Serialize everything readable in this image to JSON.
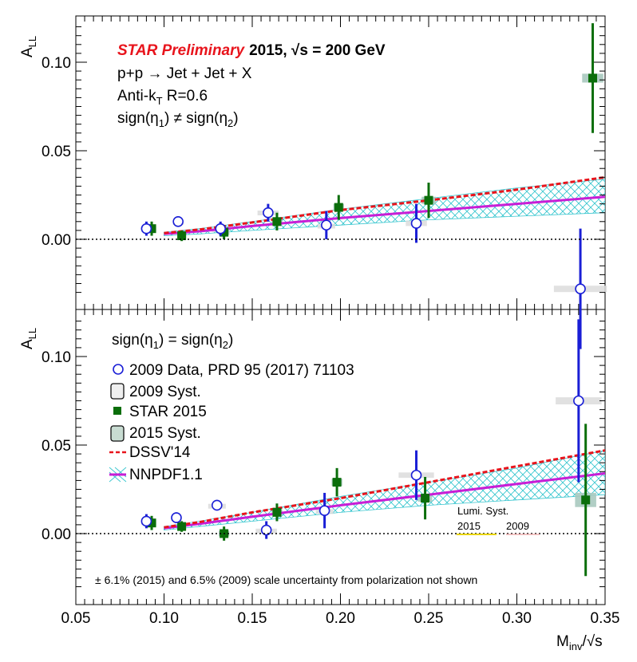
{
  "figure": {
    "y_axis_label_main": "A",
    "y_axis_label_sub": "LL",
    "x_axis_label_main": "M",
    "x_axis_label_sub": "inv",
    "x_axis_label_tail": "/√s",
    "x_tick_labels": [
      "0.05",
      "0.10",
      "0.15",
      "0.20",
      "0.25",
      "0.30",
      "0.35"
    ],
    "y_tick_labels": [
      "0.00",
      "0.05",
      "0.10"
    ]
  },
  "top_panel": {
    "prelim": "STAR Preliminary",
    "energy": "2015, √s = 200 GeV",
    "process": "p+p → Jet + Jet + X",
    "algo_main": "Anti-k",
    "algo_sub": "T",
    "algo_tail": " R=0.6",
    "topology_a": "sign(η",
    "topology_sub1": "1",
    "topology_b": ") ≠ sign(η",
    "topology_sub2": "2",
    "topology_c": ")"
  },
  "bottom_panel": {
    "topology_a": "sign(η",
    "topology_sub1": "1",
    "topology_b": ") = sign(η",
    "topology_sub2": "2",
    "topology_c": ")",
    "legend": {
      "data2009": "2009 Data, PRD 95 (2017) 71103",
      "syst2009": "2009 Syst.",
      "star2015": "STAR 2015",
      "syst2015": "2015 Syst.",
      "dssv": "DSSV'14",
      "nnpdf": "NNPDF1.1"
    },
    "lumi_title": "Lumi. Syst.",
    "lumi_2015": "2015",
    "lumi_2009": "2009",
    "note": "± 6.1% (2015) and 6.5% (2009) scale uncertainty from polarization not shown"
  },
  "colors": {
    "data2009": "#1a1fd6",
    "star2015": "#0b6e0b",
    "syst2009": "#dcdcdc",
    "syst2015": "#a9c9bf",
    "dssv": "#e8141c",
    "nnpdf": "#c81ed6",
    "nnpdf_band": "#39c6cf",
    "zero_line": "#000000"
  },
  "chart_data": [
    {
      "panel": "top",
      "type": "scatter",
      "xlim": [
        0.05,
        0.35
      ],
      "ylim": [
        -0.032,
        0.123
      ],
      "xlabel": "Minv/√s",
      "ylabel": "ALL",
      "grid": false,
      "series": [
        {
          "name": "2009 Data, PRD 95 (2017) 71103",
          "x": [
            0.09,
            0.108,
            0.132,
            0.159,
            0.192,
            0.243,
            0.336
          ],
          "y": [
            0.006,
            0.01,
            0.006,
            0.015,
            0.008,
            0.009,
            -0.028
          ],
          "yerr": [
            0.004,
            0.003,
            0.004,
            0.005,
            0.008,
            0.011,
            0.034
          ],
          "syst": [
            0.0008,
            0.0008,
            0.0008,
            0.0012,
            0.0008,
            0.0015,
            0.0018
          ],
          "syst_halfwidth": [
            0.003,
            0.003,
            0.005,
            0.006,
            0.005,
            0.006,
            0.015
          ]
        },
        {
          "name": "STAR 2015",
          "x": [
            0.093,
            0.11,
            0.134,
            0.164,
            0.199,
            0.25,
            0.343
          ],
          "y": [
            0.006,
            0.002,
            0.004,
            0.01,
            0.018,
            0.022,
            0.091
          ],
          "yerr": [
            0.004,
            0.003,
            0.004,
            0.005,
            0.007,
            0.01,
            0.031
          ],
          "syst": [
            0.0015,
            0.0015,
            0.0015,
            0.0018,
            0.002,
            0.002,
            0.0025
          ],
          "syst_halfwidth": [
            0.0025,
            0.0025,
            0.003,
            0.003,
            0.003,
            0.004,
            0.006
          ]
        },
        {
          "name": "DSSV'14",
          "x": [
            0.1,
            0.12,
            0.15,
            0.2,
            0.25,
            0.3,
            0.35
          ],
          "y": [
            0.0035,
            0.0055,
            0.0095,
            0.0165,
            0.022,
            0.028,
            0.035
          ]
        },
        {
          "name": "NNPDF1.1",
          "x": [
            0.1,
            0.12,
            0.15,
            0.2,
            0.25,
            0.3,
            0.35
          ],
          "y": [
            0.003,
            0.0045,
            0.0075,
            0.012,
            0.016,
            0.02,
            0.024
          ],
          "band_low": [
            0.002,
            0.003,
            0.005,
            0.008,
            0.011,
            0.013,
            0.015
          ],
          "band_high": [
            0.004,
            0.006,
            0.01,
            0.017,
            0.023,
            0.029,
            0.034
          ]
        }
      ]
    },
    {
      "panel": "bottom",
      "type": "scatter",
      "xlim": [
        0.05,
        0.35
      ],
      "ylim": [
        -0.032,
        0.123
      ],
      "xlabel": "Minv/√s",
      "ylabel": "ALL",
      "grid": false,
      "series": [
        {
          "name": "2009 Data, PRD 95 (2017) 71103",
          "x": [
            0.09,
            0.107,
            0.13,
            0.158,
            0.191,
            0.243,
            0.335
          ],
          "y": [
            0.007,
            0.009,
            0.016,
            0.002,
            0.013,
            0.033,
            0.075
          ],
          "yerr": [
            0.004,
            0.003,
            0.003,
            0.005,
            0.01,
            0.014,
            0.046
          ],
          "syst": [
            0.0008,
            0.0008,
            0.0008,
            0.0008,
            0.0008,
            0.0015,
            0.002
          ],
          "syst_halfwidth": [
            0.003,
            0.003,
            0.005,
            0.006,
            0.005,
            0.01,
            0.013
          ]
        },
        {
          "name": "STAR 2015",
          "x": [
            0.093,
            0.11,
            0.134,
            0.164,
            0.198,
            0.248,
            0.339
          ],
          "y": [
            0.006,
            0.004,
            0.0,
            0.012,
            0.029,
            0.02,
            0.019
          ],
          "yerr": [
            0.004,
            0.003,
            0.004,
            0.005,
            0.008,
            0.012,
            0.043
          ],
          "syst": [
            0.0015,
            0.0015,
            0.0015,
            0.0018,
            0.002,
            0.002,
            0.004
          ],
          "syst_halfwidth": [
            0.0025,
            0.0025,
            0.003,
            0.003,
            0.003,
            0.004,
            0.006
          ]
        },
        {
          "name": "DSSV'14",
          "x": [
            0.1,
            0.12,
            0.15,
            0.2,
            0.25,
            0.3,
            0.35
          ],
          "y": [
            0.0035,
            0.0065,
            0.012,
            0.02,
            0.029,
            0.038,
            0.047
          ]
        },
        {
          "name": "NNPDF1.1",
          "x": [
            0.1,
            0.12,
            0.15,
            0.2,
            0.25,
            0.3,
            0.35
          ],
          "y": [
            0.003,
            0.0055,
            0.0095,
            0.016,
            0.022,
            0.028,
            0.034
          ],
          "band_low": [
            0.002,
            0.004,
            0.007,
            0.012,
            0.016,
            0.019,
            0.022
          ],
          "band_high": [
            0.004,
            0.007,
            0.012,
            0.021,
            0.029,
            0.037,
            0.047
          ]
        }
      ]
    }
  ]
}
